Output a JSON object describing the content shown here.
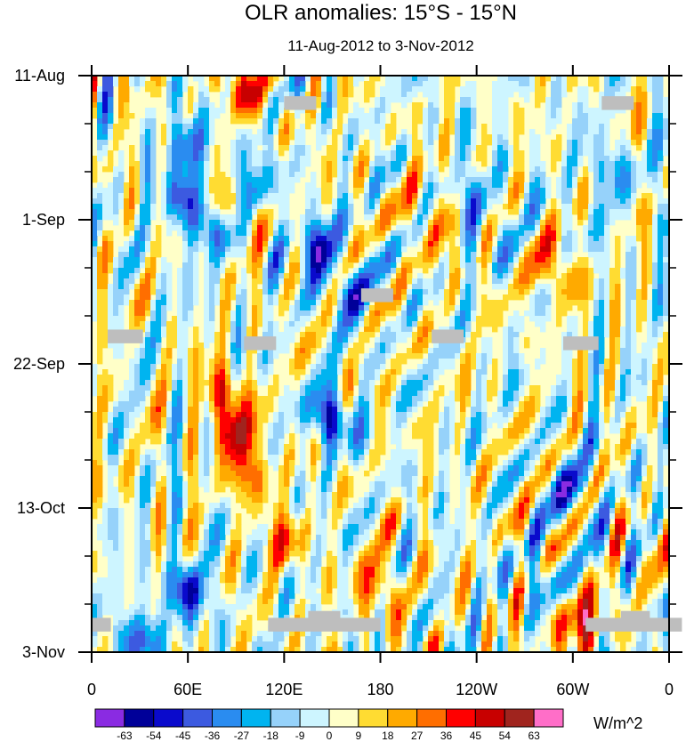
{
  "chart_data": {
    "type": "heatmap",
    "title": "OLR anomalies: 15°S - 15°N",
    "subtitle": "11-Aug-2012 to 3-Nov-2012",
    "x_ticks": [
      "0",
      "60E",
      "120E",
      "180",
      "120W",
      "60W",
      "0"
    ],
    "x_range": [
      0,
      360
    ],
    "y_ticks": [
      "11-Aug",
      "1-Sep",
      "22-Sep",
      "13-Oct",
      "3-Nov"
    ],
    "y_range_days": [
      0,
      84
    ],
    "colorbar": {
      "unit": "W/m^2",
      "levels": [
        -63,
        -54,
        -45,
        -36,
        -27,
        -18,
        -9,
        0,
        9,
        18,
        27,
        36,
        45,
        54,
        63
      ],
      "colors": [
        "#8a2be2",
        "#000099",
        "#0a0acc",
        "#3c5ae0",
        "#2a8cf0",
        "#00b4f0",
        "#96d2fa",
        "#cdf5ff",
        "#ffffc8",
        "#ffdc32",
        "#ffaa00",
        "#ff6e00",
        "#ff0000",
        "#c80000",
        "#a0241e",
        "#ff6ec8"
      ]
    },
    "missing_color": "#bebebe",
    "anomaly_blobs": [
      {
        "lon": 60,
        "day": 10,
        "value": -40
      },
      {
        "lon": 55,
        "day": 18,
        "value": -38
      },
      {
        "lon": 75,
        "day": 22,
        "value": -45
      },
      {
        "lon": 100,
        "day": 16,
        "value": -30
      },
      {
        "lon": 140,
        "day": 25,
        "value": -50
      },
      {
        "lon": 150,
        "day": 50,
        "value": -55
      },
      {
        "lon": 160,
        "day": 31,
        "value": -40
      },
      {
        "lon": 60,
        "day": 75,
        "value": -50
      },
      {
        "lon": 30,
        "day": 82,
        "value": -45
      },
      {
        "lon": 290,
        "day": 74,
        "value": -45
      },
      {
        "lon": 300,
        "day": 60,
        "value": -40
      },
      {
        "lon": 240,
        "day": 18,
        "value": -35
      },
      {
        "lon": 320,
        "day": 14,
        "value": -30
      },
      {
        "lon": 90,
        "day": 52,
        "value": 50
      },
      {
        "lon": 100,
        "day": 58,
        "value": 38
      },
      {
        "lon": 80,
        "day": 46,
        "value": 40
      },
      {
        "lon": 95,
        "day": 2,
        "value": 40
      },
      {
        "lon": 180,
        "day": 74,
        "value": 38
      },
      {
        "lon": 300,
        "day": 80,
        "value": 45
      },
      {
        "lon": 290,
        "day": 29,
        "value": 35
      },
      {
        "lon": 300,
        "day": 76,
        "value": 32
      },
      {
        "lon": 210,
        "day": 20,
        "value": 28
      },
      {
        "lon": 85,
        "day": 20,
        "value": 30
      },
      {
        "lon": 120,
        "day": 68,
        "value": 30
      }
    ]
  }
}
